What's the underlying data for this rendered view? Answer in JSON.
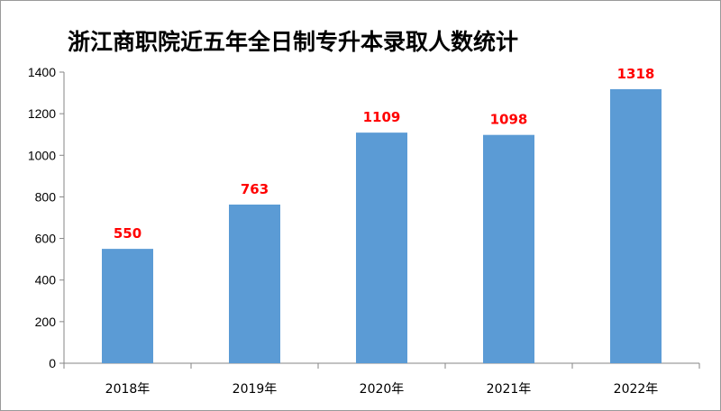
{
  "chart_data": {
    "type": "bar",
    "title": "浙江商职院近五年全日制专升本录取人数统计",
    "categories": [
      "2018年",
      "2019年",
      "2020年",
      "2021年",
      "2022年"
    ],
    "values": [
      550,
      763,
      1109,
      1098,
      1318
    ],
    "ylim": [
      0,
      1400
    ],
    "yticks": [
      0,
      200,
      400,
      600,
      800,
      1000,
      1200,
      1400
    ],
    "xlabel": "",
    "ylabel": "",
    "grid": false,
    "legend": "none",
    "colors": {
      "bar": "#5b9bd5",
      "data_label": "#ff0000",
      "axis": "#868686"
    }
  }
}
